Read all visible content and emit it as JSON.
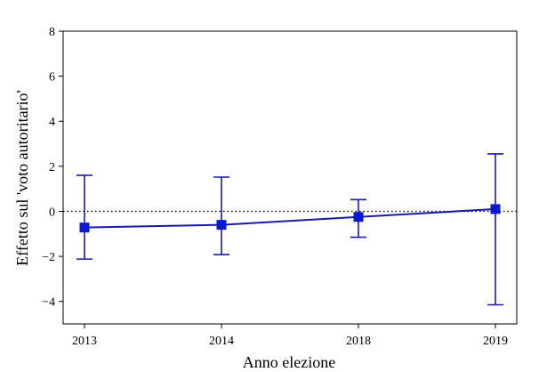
{
  "chart_data": {
    "type": "line",
    "title": "",
    "xlabel": "Anno elezione",
    "ylabel": "Effetto sul 'voto autoritario'",
    "categories": [
      "2013",
      "2014",
      "2018",
      "2019"
    ],
    "series": [
      {
        "values": [
          -0.72,
          -0.6,
          -0.25,
          0.1
        ],
        "ci_lower": [
          -2.12,
          -1.92,
          -1.15,
          -4.15
        ],
        "ci_upper": [
          1.6,
          1.52,
          0.52,
          2.55
        ],
        "color": "#1a1aa8",
        "marker": "square"
      }
    ],
    "ylim": [
      -5,
      8
    ],
    "yticks": [
      -4,
      -2,
      0,
      2,
      4,
      6,
      8
    ],
    "ytick_labels": [
      "−4",
      "−2",
      "0",
      "2",
      "4",
      "6",
      "8"
    ],
    "reference_line": {
      "y": 0,
      "style": "dotted",
      "color": "#000000"
    },
    "grid": false,
    "legend": "none"
  }
}
